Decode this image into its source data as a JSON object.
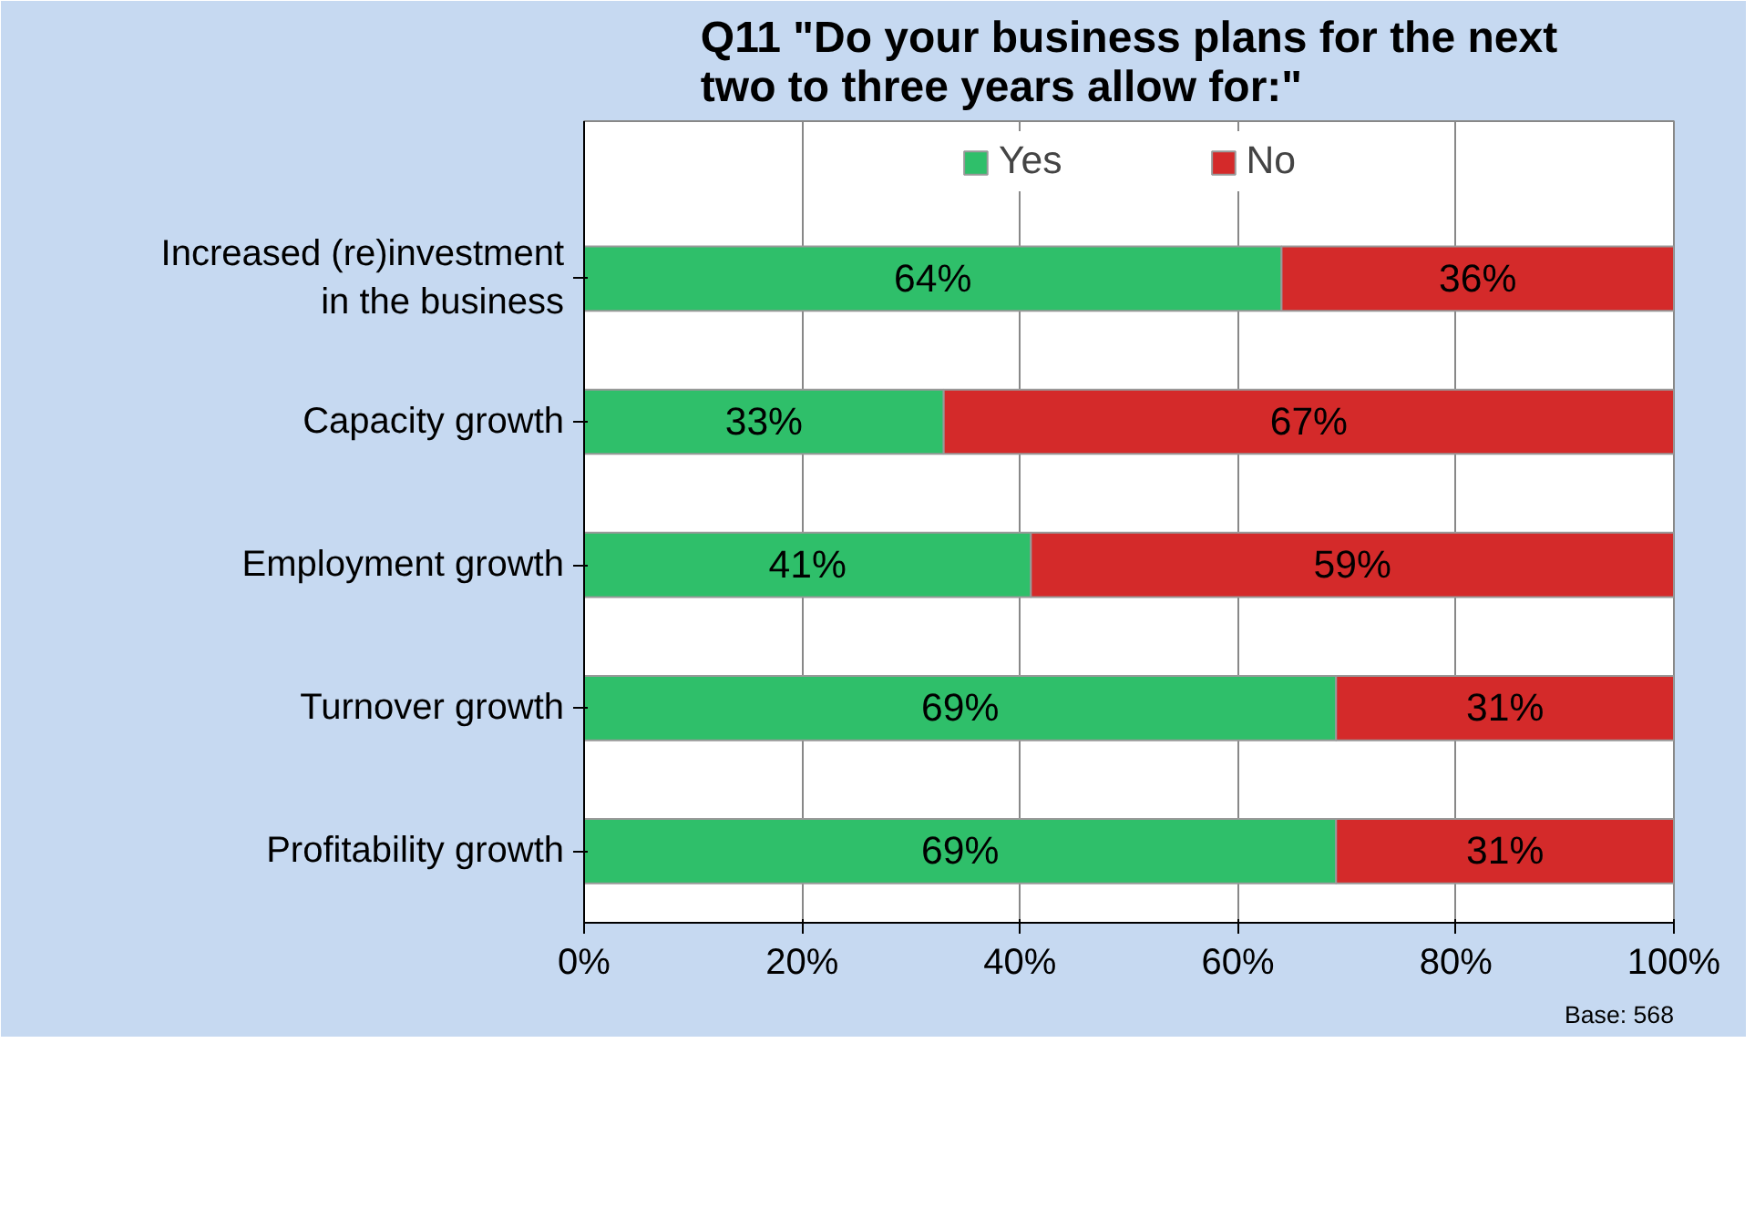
{
  "chart_data": {
    "type": "bar",
    "orientation": "horizontal",
    "stacked": true,
    "title": "Q11 \"Do your business plans for the next two to three years allow for:\"",
    "categories": [
      "Increased (re)investment in the business",
      "Capacity growth",
      "Employment growth",
      "Turnover growth",
      "Profitability growth"
    ],
    "series": [
      {
        "name": "Yes",
        "color": "#2fbf6a",
        "values": [
          64,
          33,
          41,
          69,
          69
        ],
        "value_labels": [
          "64%",
          "33%",
          "41%",
          "69%",
          "69%"
        ]
      },
      {
        "name": "No",
        "color": "#d42a2a",
        "values": [
          36,
          67,
          59,
          31,
          31
        ],
        "value_labels": [
          "36%",
          "67%",
          "59%",
          "31%",
          "31%"
        ]
      }
    ],
    "xlim": [
      0,
      100
    ],
    "xticks": [
      {
        "value": 0,
        "label": "0%"
      },
      {
        "value": 20,
        "label": "20%"
      },
      {
        "value": 40,
        "label": "40%"
      },
      {
        "value": 60,
        "label": "60%"
      },
      {
        "value": 80,
        "label": "80%"
      },
      {
        "value": 100,
        "label": "100%"
      }
    ],
    "grid": "x",
    "legend": "top",
    "annotations": [
      "Base: 568"
    ]
  }
}
